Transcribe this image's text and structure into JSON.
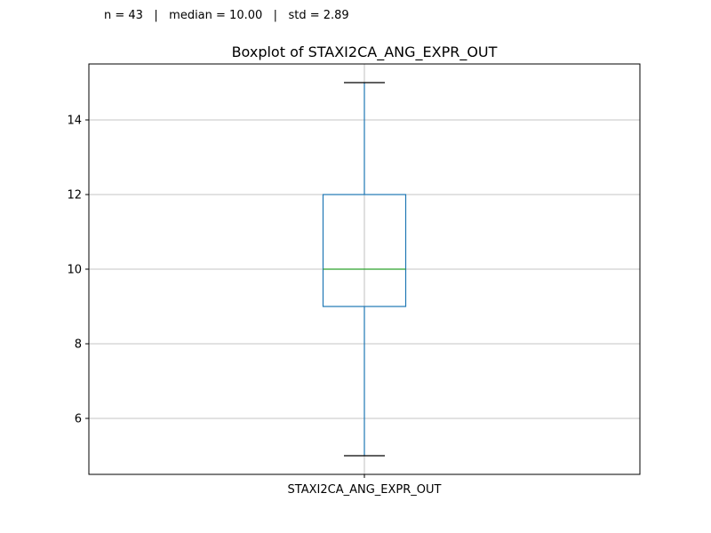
{
  "stats": {
    "n_label": "n = 43",
    "separator": "|",
    "median_label": "median = 10.00",
    "std_label": "std = 2.89"
  },
  "chart_data": {
    "type": "box",
    "title": "Boxplot of STAXI2CA_ANG_EXPR_OUT",
    "xlabel": "",
    "ylabel": "",
    "categories": [
      "STAXI2CA_ANG_EXPR_OUT"
    ],
    "boxes": [
      {
        "category": "STAXI2CA_ANG_EXPR_OUT",
        "whisker_low": 5,
        "q1": 9,
        "median": 10,
        "q3": 12,
        "whisker_high": 15
      }
    ],
    "y_ticks": [
      6,
      8,
      10,
      12,
      14
    ],
    "ylim": [
      4.5,
      15.5
    ],
    "grid": true,
    "n": 43,
    "median": 10.0,
    "std": 2.89,
    "colors": {
      "box": "#1f77b4",
      "median": "#2ca02c",
      "caps": "#000000",
      "grid": "#b0b0b0",
      "axes": "#000000"
    }
  }
}
